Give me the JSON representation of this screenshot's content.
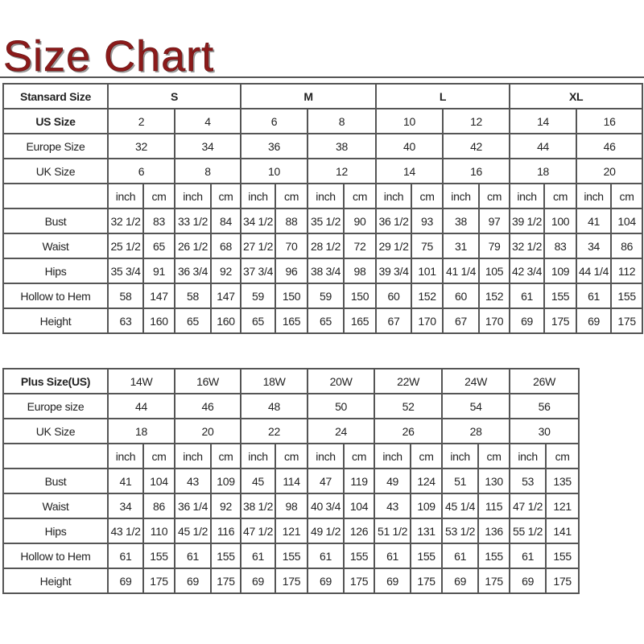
{
  "title": "Size Chart",
  "standard": {
    "header_label": "Stansard Size",
    "groups": [
      "S",
      "M",
      "L",
      "XL"
    ],
    "us_label": "US Size",
    "us": [
      "2",
      "4",
      "6",
      "8",
      "10",
      "12",
      "14",
      "16"
    ],
    "europe_label": "Europe Size",
    "europe": [
      "32",
      "34",
      "36",
      "38",
      "40",
      "42",
      "44",
      "46"
    ],
    "uk_label": "UK Size",
    "uk": [
      "6",
      "8",
      "10",
      "12",
      "14",
      "16",
      "18",
      "20"
    ],
    "units": [
      "inch",
      "cm"
    ],
    "measurements": [
      {
        "label": "Bust",
        "values": [
          "32 1/2",
          "83",
          "33 1/2",
          "84",
          "34 1/2",
          "88",
          "35 1/2",
          "90",
          "36 1/2",
          "93",
          "38",
          "97",
          "39 1/2",
          "100",
          "41",
          "104"
        ]
      },
      {
        "label": "Waist",
        "values": [
          "25 1/2",
          "65",
          "26 1/2",
          "68",
          "27 1/2",
          "70",
          "28 1/2",
          "72",
          "29 1/2",
          "75",
          "31",
          "79",
          "32 1/2",
          "83",
          "34",
          "86"
        ]
      },
      {
        "label": "Hips",
        "values": [
          "35 3/4",
          "91",
          "36 3/4",
          "92",
          "37 3/4",
          "96",
          "38 3/4",
          "98",
          "39 3/4",
          "101",
          "41 1/4",
          "105",
          "42 3/4",
          "109",
          "44 1/4",
          "112"
        ]
      },
      {
        "label": "Hollow to Hem",
        "values": [
          "58",
          "147",
          "58",
          "147",
          "59",
          "150",
          "59",
          "150",
          "60",
          "152",
          "60",
          "152",
          "61",
          "155",
          "61",
          "155"
        ]
      },
      {
        "label": "Height",
        "values": [
          "63",
          "160",
          "65",
          "160",
          "65",
          "165",
          "65",
          "165",
          "67",
          "170",
          "67",
          "170",
          "69",
          "175",
          "69",
          "175"
        ]
      }
    ]
  },
  "plus": {
    "header_label": "Plus Size(US)",
    "us": [
      "14W",
      "16W",
      "18W",
      "20W",
      "22W",
      "24W",
      "26W"
    ],
    "europe_label": "Europe size",
    "europe": [
      "44",
      "46",
      "48",
      "50",
      "52",
      "54",
      "56"
    ],
    "uk_label": "UK Size",
    "uk": [
      "18",
      "20",
      "22",
      "24",
      "26",
      "28",
      "30"
    ],
    "units": [
      "inch",
      "cm"
    ],
    "measurements": [
      {
        "label": "Bust",
        "values": [
          "41",
          "104",
          "43",
          "109",
          "45",
          "114",
          "47",
          "119",
          "49",
          "124",
          "51",
          "130",
          "53",
          "135"
        ]
      },
      {
        "label": "Waist",
        "values": [
          "34",
          "86",
          "36 1/4",
          "92",
          "38 1/2",
          "98",
          "40 3/4",
          "104",
          "43",
          "109",
          "45 1/4",
          "115",
          "47 1/2",
          "121"
        ]
      },
      {
        "label": "Hips",
        "values": [
          "43 1/2",
          "110",
          "45 1/2",
          "116",
          "47 1/2",
          "121",
          "49 1/2",
          "126",
          "51 1/2",
          "131",
          "53 1/2",
          "136",
          "55 1/2",
          "141"
        ]
      },
      {
        "label": "Hollow to Hem",
        "values": [
          "61",
          "155",
          "61",
          "155",
          "61",
          "155",
          "61",
          "155",
          "61",
          "155",
          "61",
          "155",
          "61",
          "155"
        ]
      },
      {
        "label": "Height",
        "values": [
          "69",
          "175",
          "69",
          "175",
          "69",
          "175",
          "69",
          "175",
          "69",
          "175",
          "69",
          "175",
          "69",
          "175"
        ]
      }
    ]
  }
}
